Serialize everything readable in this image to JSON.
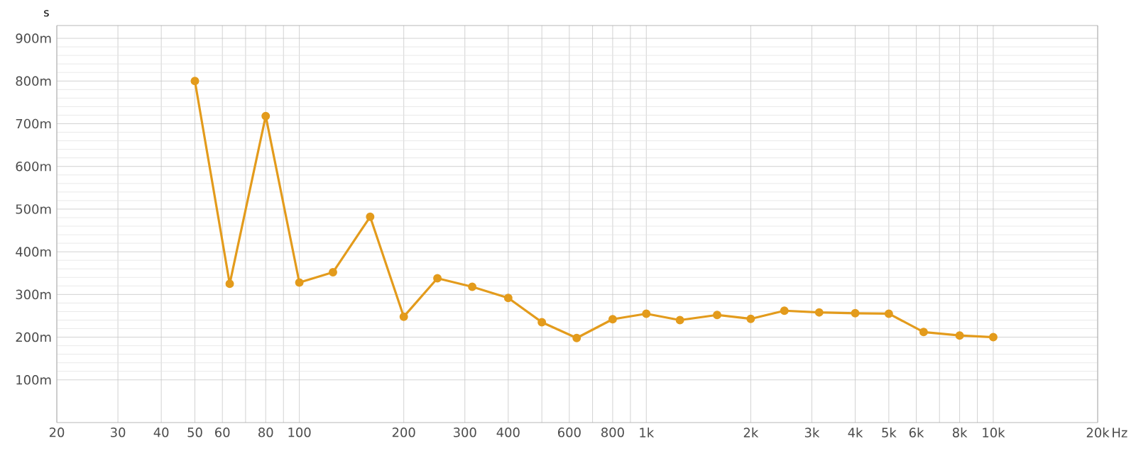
{
  "chart_data": {
    "type": "line",
    "ylabel": "s",
    "xlabel": "Hz",
    "x": [
      50,
      63,
      80,
      100,
      125,
      160,
      200,
      250,
      315,
      400,
      500,
      630,
      800,
      1000,
      1250,
      1600,
      2000,
      2500,
      3150,
      4000,
      5000,
      6300,
      8000,
      10000
    ],
    "series": [
      {
        "color": "#e39b1c",
        "values": [
          800,
          325,
          718,
          328,
          352,
          482,
          248,
          338,
          318,
          292,
          235,
          198,
          242,
          255,
          240,
          252,
          243,
          262,
          258,
          256,
          255,
          212,
          204,
          200
        ]
      }
    ],
    "log": "x",
    "xlim": [
      20,
      20000
    ],
    "ylim": [
      0,
      930
    ],
    "xticks": [
      {
        "value": 20,
        "label": "20"
      },
      {
        "value": 30,
        "label": "30"
      },
      {
        "value": 40,
        "label": "40"
      },
      {
        "value": 50,
        "label": "50"
      },
      {
        "value": 60,
        "label": "60"
      },
      {
        "value": 70,
        "label": null
      },
      {
        "value": 80,
        "label": "80"
      },
      {
        "value": 90,
        "label": null
      },
      {
        "value": 100,
        "label": "100"
      },
      {
        "value": 200,
        "label": "200"
      },
      {
        "value": 300,
        "label": "300"
      },
      {
        "value": 400,
        "label": "400"
      },
      {
        "value": 500,
        "label": null
      },
      {
        "value": 600,
        "label": "600"
      },
      {
        "value": 700,
        "label": null
      },
      {
        "value": 800,
        "label": "800"
      },
      {
        "value": 900,
        "label": null
      },
      {
        "value": 1000,
        "label": "1k"
      },
      {
        "value": 2000,
        "label": "2k"
      },
      {
        "value": 3000,
        "label": "3k"
      },
      {
        "value": 4000,
        "label": "4k"
      },
      {
        "value": 5000,
        "label": "5k"
      },
      {
        "value": 6000,
        "label": "6k"
      },
      {
        "value": 7000,
        "label": null
      },
      {
        "value": 8000,
        "label": "8k"
      },
      {
        "value": 9000,
        "label": null
      },
      {
        "value": 10000,
        "label": "10k"
      },
      {
        "value": 20000,
        "label": "20k"
      }
    ],
    "yticks": [
      {
        "value": 100,
        "label": "100m"
      },
      {
        "value": 200,
        "label": "200m"
      },
      {
        "value": 300,
        "label": "300m"
      },
      {
        "value": 400,
        "label": "400m"
      },
      {
        "value": 500,
        "label": "500m"
      },
      {
        "value": 600,
        "label": "600m"
      },
      {
        "value": 700,
        "label": "700m"
      },
      {
        "value": 800,
        "label": "800m"
      },
      {
        "value": 900,
        "label": "900m"
      }
    ],
    "grid": true,
    "marker": "circle",
    "line_style": "solid"
  }
}
